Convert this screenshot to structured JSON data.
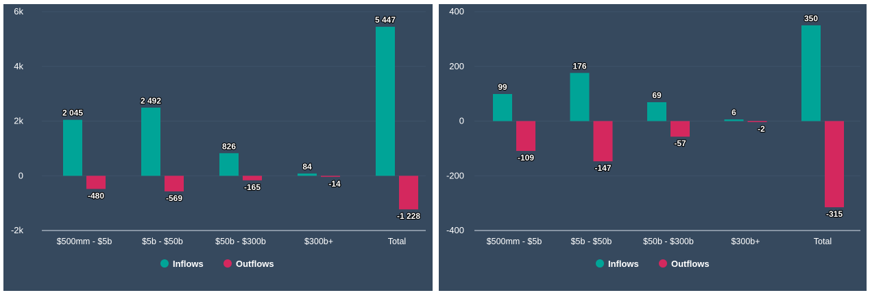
{
  "colors": {
    "background": "#36495e",
    "inflows": "#00a497",
    "outflows": "#d4285e",
    "text": "#ffffff",
    "grid": "#3f5369"
  },
  "chart_data": [
    {
      "type": "bar",
      "categories": [
        "$500mm - $5b",
        "$5b - $50b",
        "$50b - $300b",
        "$300b+",
        "Total"
      ],
      "series": [
        {
          "name": "Inflows",
          "values": [
            2045,
            2492,
            826,
            84,
            5447
          ],
          "labels": [
            "2 045",
            "2 492",
            "826",
            "84",
            "5 447"
          ]
        },
        {
          "name": "Outflows",
          "values": [
            -480,
            -569,
            -165,
            -14,
            -1228
          ],
          "labels": [
            "-480",
            "-569",
            "-165",
            "-14",
            "-1 228"
          ]
        }
      ],
      "yticks": [
        6000,
        4000,
        2000,
        0,
        -2000
      ],
      "ytick_labels": [
        "6k",
        "4k",
        "2k",
        "0",
        "-2k"
      ],
      "ylim": [
        -2000,
        6000
      ],
      "grid": true,
      "legend": "bottom"
    },
    {
      "type": "bar",
      "categories": [
        "$500mm - $5b",
        "$5b - $50b",
        "$50b - $300b",
        "$300b+",
        "Total"
      ],
      "series": [
        {
          "name": "Inflows",
          "values": [
            99,
            176,
            69,
            6,
            350
          ],
          "labels": [
            "99",
            "176",
            "69",
            "6",
            "350"
          ]
        },
        {
          "name": "Outflows",
          "values": [
            -109,
            -147,
            -57,
            -2,
            -315
          ],
          "labels": [
            "-109",
            "-147",
            "-57",
            "-2",
            "-315"
          ]
        }
      ],
      "yticks": [
        400,
        200,
        0,
        -200,
        -400
      ],
      "ytick_labels": [
        "400",
        "200",
        "0",
        "-200",
        "-400"
      ],
      "ylim": [
        -400,
        400
      ],
      "grid": true,
      "legend": "bottom"
    }
  ]
}
